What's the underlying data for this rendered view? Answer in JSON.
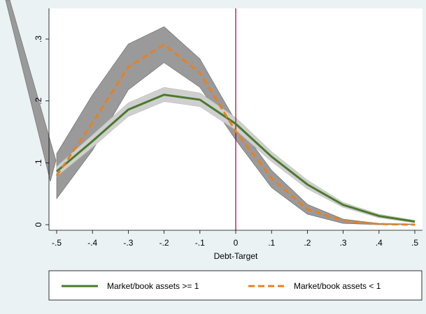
{
  "chart_data": {
    "type": "line",
    "x_label": "Debt-Target",
    "x": [
      -0.5,
      -0.4,
      -0.3,
      -0.2,
      -0.1,
      0,
      0.1,
      0.2,
      0.3,
      0.4,
      0.5
    ],
    "series": [
      {
        "name": "Market/book assets >= 1",
        "color": "#4a7a2c",
        "band_color": "#cfcfcf",
        "values": [
          0.086,
          0.135,
          0.186,
          0.21,
          0.202,
          0.163,
          0.11,
          0.065,
          0.032,
          0.014,
          0.005
        ],
        "lower": [
          0.078,
          0.125,
          0.175,
          0.199,
          0.191,
          0.153,
          0.102,
          0.058,
          0.028,
          0.011,
          0.003
        ],
        "upper": [
          0.094,
          0.145,
          0.197,
          0.222,
          0.213,
          0.173,
          0.118,
          0.072,
          0.036,
          0.017,
          0.007
        ]
      },
      {
        "name": "Market/book assets < 1",
        "color": "#e8801f",
        "band_color": "#9a9a9a",
        "values": [
          0.079,
          0.165,
          0.255,
          0.291,
          0.245,
          0.151,
          0.075,
          0.025,
          0.006,
          0.001,
          0.0
        ],
        "lower": [
          0.042,
          0.12,
          0.218,
          0.262,
          0.222,
          0.137,
          0.06,
          0.017,
          0.002,
          0.0,
          0.0
        ],
        "upper": [
          0.115,
          0.21,
          0.292,
          0.32,
          0.268,
          0.167,
          0.088,
          0.033,
          0.009,
          0.002,
          0.001
        ]
      }
    ],
    "vline": 0,
    "vline_color": "#990033",
    "xlim": [
      -0.5,
      0.5
    ],
    "xticks": [
      {
        "value": -0.5,
        "label": "-.5"
      },
      {
        "value": -0.4,
        "label": "-.4"
      },
      {
        "value": -0.3,
        "label": "-.3"
      },
      {
        "value": -0.2,
        "label": "-.2"
      },
      {
        "value": -0.1,
        "label": "-.1"
      },
      0,
      {
        "value": 0.1,
        "label": ".1"
      },
      {
        "value": 0.2,
        "label": ".2"
      },
      {
        "value": 0.3,
        "label": ".3"
      },
      {
        "value": 0.4,
        "label": ".4"
      },
      {
        "value": 0.5,
        "label": ".5"
      }
    ],
    "ylim": [
      0,
      0.3
    ],
    "yticks": [
      0,
      {
        "value": 0.1,
        "label": ".1"
      },
      {
        "value": 0.2,
        "label": ".2"
      },
      {
        "value": 0.3,
        "label": ".3"
      }
    ]
  }
}
